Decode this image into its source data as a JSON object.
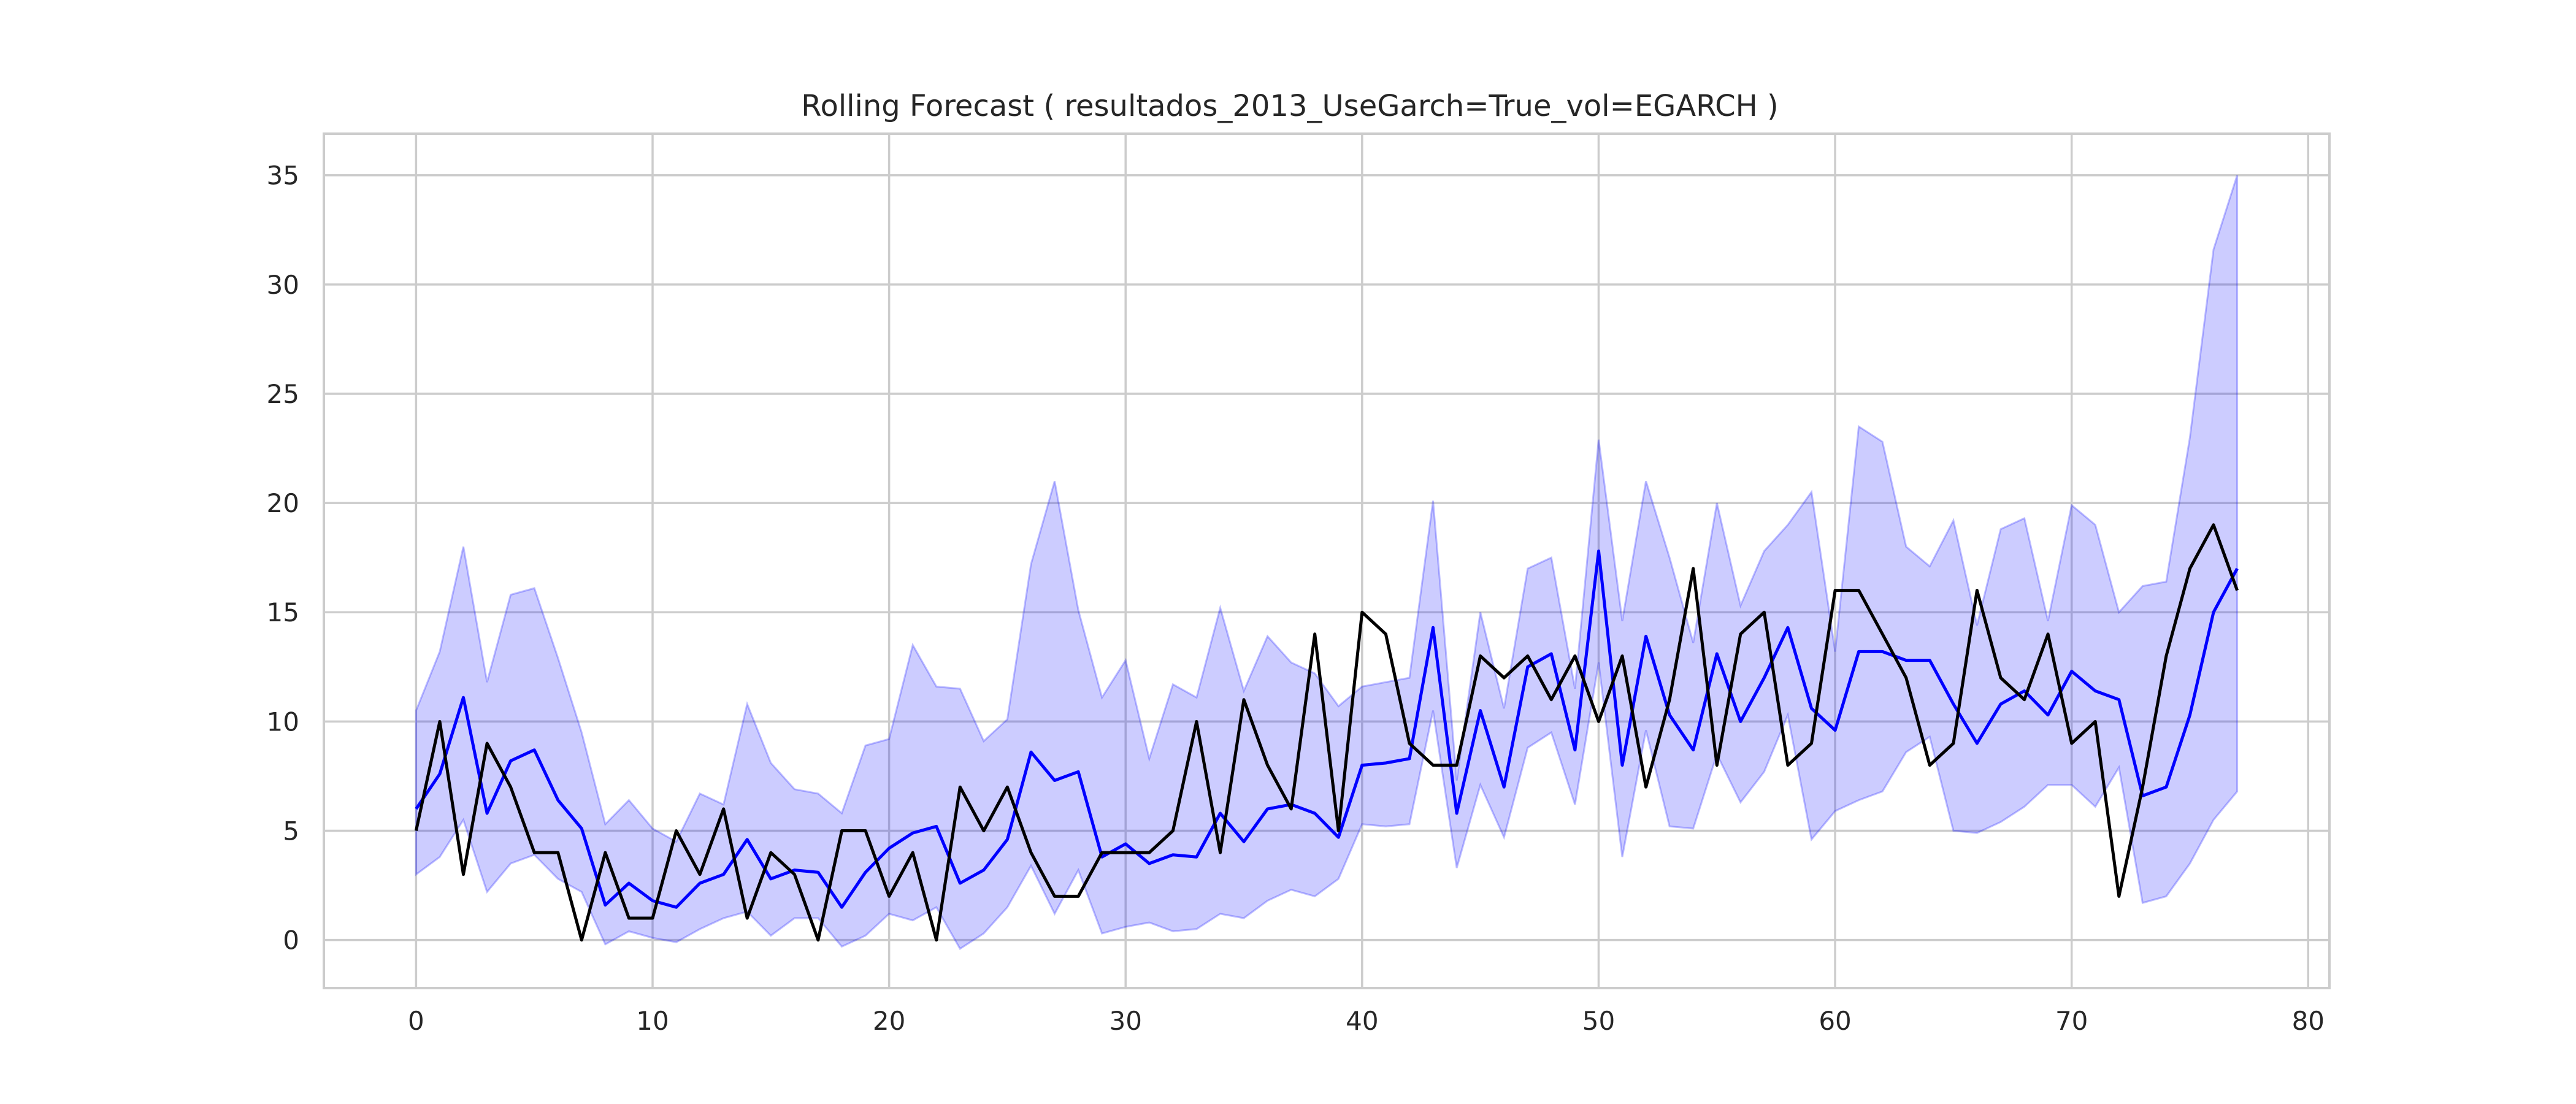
{
  "chart_data": {
    "type": "line",
    "title": "Rolling Forecast ( resultados_2013_UseGarch=True_vol=EGARCH )",
    "xlabel": "",
    "ylabel": "",
    "xlim": [
      -3.9,
      80.9
    ],
    "ylim": [
      -2.2,
      36.9
    ],
    "xticks": [
      0,
      10,
      20,
      30,
      40,
      50,
      60,
      70,
      80
    ],
    "yticks": [
      0,
      5,
      10,
      15,
      20,
      25,
      30,
      35
    ],
    "grid": true,
    "legend": "none",
    "x": [
      0,
      1,
      2,
      3,
      4,
      5,
      6,
      7,
      8,
      9,
      10,
      11,
      12,
      13,
      14,
      15,
      16,
      17,
      18,
      19,
      20,
      21,
      22,
      23,
      24,
      25,
      26,
      27,
      28,
      29,
      30,
      31,
      32,
      33,
      34,
      35,
      36,
      37,
      38,
      39,
      40,
      41,
      42,
      43,
      44,
      45,
      46,
      47,
      48,
      49,
      50,
      51,
      52,
      53,
      54,
      55,
      56,
      57,
      58,
      59,
      60,
      61,
      62,
      63,
      64,
      65,
      66,
      67,
      68,
      69,
      70,
      71,
      72,
      73,
      74,
      75,
      76,
      77
    ],
    "series": [
      {
        "role": "band",
        "color": "#0000ff",
        "opacity": 0.2,
        "upper": [
          10.5,
          13.2,
          18.0,
          11.8,
          15.8,
          16.1,
          12.9,
          9.5,
          5.3,
          6.4,
          5.1,
          4.5,
          6.7,
          6.2,
          10.8,
          8.1,
          6.9,
          6.7,
          5.8,
          8.9,
          9.2,
          13.5,
          11.6,
          11.5,
          9.1,
          10.1,
          17.2,
          21.0,
          15.1,
          11.1,
          12.8,
          8.3,
          11.7,
          11.1,
          15.2,
          11.4,
          13.9,
          12.7,
          12.2,
          10.7,
          11.6,
          11.8,
          12.0,
          20.1,
          7.3,
          15.0,
          10.6,
          17.0,
          17.5,
          11.5,
          22.9,
          14.6,
          21.0,
          17.5,
          13.6,
          20.0,
          15.3,
          17.8,
          19.0,
          20.5,
          13.2,
          23.5,
          22.8,
          18.0,
          17.1,
          19.2,
          14.4,
          18.8,
          19.3,
          14.6,
          19.9,
          19.0,
          15.0,
          16.2,
          16.4,
          23.0,
          31.6,
          35.0
        ]
      },
      {
        "role": "band-lower",
        "color": "#0000ff",
        "opacity": 0.2,
        "lower": [
          3.0,
          3.8,
          5.5,
          2.2,
          3.5,
          3.9,
          2.8,
          2.2,
          -0.2,
          0.4,
          0.1,
          -0.1,
          0.5,
          1.0,
          1.3,
          0.2,
          1.0,
          1.0,
          -0.3,
          0.2,
          1.2,
          0.9,
          1.5,
          -0.4,
          0.3,
          1.5,
          3.4,
          1.2,
          3.2,
          0.3,
          0.6,
          0.8,
          0.4,
          0.5,
          1.2,
          1.0,
          1.8,
          2.3,
          2.0,
          2.8,
          5.3,
          5.2,
          5.3,
          10.5,
          3.3,
          7.1,
          4.7,
          8.8,
          9.5,
          6.2,
          12.7,
          3.8,
          9.6,
          5.2,
          5.1,
          8.5,
          6.3,
          7.7,
          10.3,
          4.6,
          5.9,
          6.4,
          6.8,
          8.6,
          9.3,
          5.0,
          4.9,
          5.4,
          6.1,
          7.1,
          7.1,
          6.1,
          7.9,
          1.7,
          2.0,
          3.5,
          5.5,
          6.8
        ]
      },
      {
        "role": "forecast",
        "color": "#0000ff",
        "values": [
          6.0,
          7.6,
          11.1,
          5.8,
          8.2,
          8.7,
          6.4,
          5.1,
          1.6,
          2.6,
          1.8,
          1.5,
          2.6,
          3.0,
          4.6,
          2.8,
          3.2,
          3.1,
          1.5,
          3.1,
          4.2,
          4.9,
          5.2,
          2.6,
          3.2,
          4.6,
          8.6,
          7.3,
          7.7,
          3.8,
          4.4,
          3.5,
          3.9,
          3.8,
          5.8,
          4.5,
          6.0,
          6.2,
          5.8,
          4.7,
          8.0,
          8.1,
          8.3,
          14.3,
          5.8,
          10.5,
          7.0,
          12.5,
          13.1,
          8.7,
          17.8,
          8.0,
          13.9,
          10.3,
          8.7,
          13.1,
          10.0,
          12.0,
          14.3,
          10.6,
          9.6,
          13.2,
          13.2,
          12.8,
          12.8,
          10.8,
          9.0,
          10.8,
          11.4,
          10.3,
          12.3,
          11.4,
          11.0,
          6.6,
          7.0,
          10.3,
          15.0,
          17.0
        ]
      },
      {
        "role": "actual",
        "color": "#000000",
        "values": [
          5,
          10,
          3,
          9,
          7,
          4,
          4,
          0,
          4,
          1,
          1,
          5,
          3,
          6,
          1,
          4,
          3,
          0,
          5,
          5,
          2,
          4,
          0,
          7,
          5,
          7,
          4,
          2,
          2,
          4,
          4,
          4,
          5,
          10,
          4,
          11,
          8,
          6,
          14,
          5,
          15,
          14,
          9,
          8,
          8,
          13,
          12,
          13,
          11,
          13,
          10,
          13,
          7,
          11,
          17,
          8,
          14,
          15,
          8,
          9,
          16,
          16,
          14,
          12,
          8,
          9,
          16,
          12,
          11,
          14,
          9,
          10,
          2,
          7,
          13,
          17,
          19,
          16
        ]
      }
    ]
  }
}
